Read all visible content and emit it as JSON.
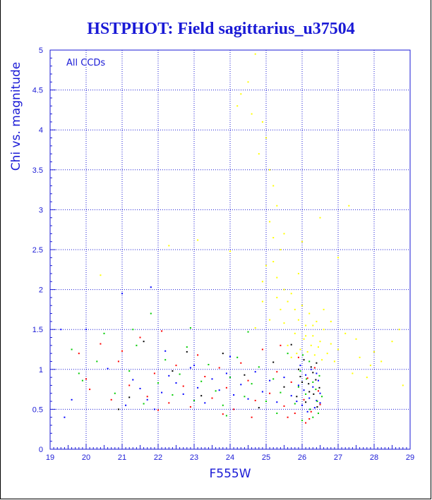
{
  "chart_data": {
    "type": "scatter",
    "title": "HSTPHOT: Field sagittarius_u37504",
    "xlabel": "F555W",
    "ylabel": "Chi vs. magnitude",
    "annotation": "All CCDs",
    "xlim": [
      19,
      29
    ],
    "ylim": [
      0,
      5
    ],
    "x_ticks": [
      "19",
      "20",
      "21",
      "22",
      "23",
      "24",
      "25",
      "26",
      "27",
      "28",
      "29"
    ],
    "y_ticks": [
      "0",
      "0.5",
      "1",
      "1.5",
      "2",
      "2.5",
      "3",
      "3.5",
      "4",
      "4.5",
      "5"
    ],
    "grid": true,
    "colors": {
      "frame": "#1a1ad6",
      "grid": "#1a1ad6",
      "point_colors": [
        "#0000ff",
        "#00cc00",
        "#ff0000",
        "#000000",
        "#ffff00"
      ]
    },
    "series": [
      {
        "color": "#0000ff",
        "points": [
          [
            19.3,
            1.5
          ],
          [
            19.4,
            0.4
          ],
          [
            19.6,
            0.62
          ],
          [
            20.0,
            1.5
          ],
          [
            20.6,
            1.01
          ],
          [
            21.1,
            0.55
          ],
          [
            21.3,
            0.87
          ],
          [
            21.5,
            0.76
          ],
          [
            21.7,
            0.62
          ],
          [
            21.9,
            0.5
          ],
          [
            22.1,
            0.71
          ],
          [
            22.3,
            0.92
          ],
          [
            22.5,
            0.83
          ],
          [
            22.7,
            0.69
          ],
          [
            22.9,
            1.02
          ],
          [
            23.1,
            0.77
          ],
          [
            23.3,
            0.58
          ],
          [
            23.5,
            0.88
          ],
          [
            23.7,
            0.74
          ],
          [
            23.9,
            0.95
          ],
          [
            24.1,
            0.68
          ],
          [
            24.3,
            0.81
          ],
          [
            24.5,
            0.63
          ],
          [
            24.7,
            0.97
          ],
          [
            24.9,
            0.72
          ],
          [
            25.1,
            0.86
          ],
          [
            25.3,
            0.59
          ],
          [
            25.5,
            0.9
          ],
          [
            25.7,
            0.67
          ],
          [
            25.9,
            0.8
          ],
          [
            26.0,
            0.55
          ],
          [
            26.1,
            0.93
          ],
          [
            26.2,
            0.64
          ],
          [
            26.3,
            0.78
          ],
          [
            26.4,
            0.61
          ],
          [
            26.45,
            0.86
          ],
          [
            26.5,
            0.7
          ],
          [
            26.35,
            0.52
          ],
          [
            26.25,
            1.0
          ],
          [
            26.15,
            0.47
          ],
          [
            26.05,
            0.74
          ],
          [
            25.95,
            1.05
          ],
          [
            25.85,
            0.6
          ],
          [
            26.5,
            0.58
          ],
          [
            26.4,
            0.95
          ],
          [
            21.0,
            1.95
          ],
          [
            21.8,
            2.03
          ],
          [
            22.2,
            1.23
          ],
          [
            23.0,
            1.05
          ],
          [
            24.0,
            1.16
          ]
        ]
      },
      {
        "color": "#00cc00",
        "points": [
          [
            19.6,
            1.25
          ],
          [
            19.8,
            0.95
          ],
          [
            20.3,
            1.1
          ],
          [
            20.8,
            0.7
          ],
          [
            21.2,
            0.98
          ],
          [
            21.4,
            1.3
          ],
          [
            21.6,
            0.57
          ],
          [
            21.8,
            1.7
          ],
          [
            22.0,
            0.83
          ],
          [
            22.2,
            1.12
          ],
          [
            22.4,
            0.68
          ],
          [
            22.6,
            0.94
          ],
          [
            22.8,
            1.28
          ],
          [
            23.0,
            0.61
          ],
          [
            23.2,
            0.85
          ],
          [
            23.4,
            1.06
          ],
          [
            23.6,
            0.73
          ],
          [
            23.8,
            0.55
          ],
          [
            24.0,
            0.9
          ],
          [
            24.2,
            1.15
          ],
          [
            24.4,
            0.66
          ],
          [
            24.6,
            0.82
          ],
          [
            24.8,
            1.03
          ],
          [
            25.0,
            0.6
          ],
          [
            25.2,
            0.88
          ],
          [
            25.4,
            0.71
          ],
          [
            25.6,
            1.2
          ],
          [
            25.8,
            0.57
          ],
          [
            25.95,
            0.98
          ],
          [
            26.1,
            0.69
          ],
          [
            26.2,
            1.1
          ],
          [
            26.3,
            0.84
          ],
          [
            26.42,
            0.6
          ],
          [
            26.48,
            0.92
          ],
          [
            26.38,
            0.75
          ],
          [
            26.22,
            0.5
          ],
          [
            26.12,
            0.88
          ],
          [
            26.02,
            1.18
          ],
          [
            25.9,
            0.78
          ],
          [
            26.55,
            0.66
          ],
          [
            21.3,
            1.5
          ],
          [
            20.5,
            1.45
          ],
          [
            22.9,
            1.52
          ],
          [
            24.5,
            1.47
          ],
          [
            19.9,
            0.86
          ],
          [
            23.9,
            0.42
          ],
          [
            25.3,
            0.45
          ],
          [
            26.0,
            0.36
          ],
          [
            26.3,
            0.4
          ],
          [
            26.45,
            0.45
          ]
        ]
      },
      {
        "color": "#ff0000",
        "points": [
          [
            19.8,
            1.2
          ],
          [
            20.1,
            0.75
          ],
          [
            20.4,
            1.32
          ],
          [
            20.7,
            0.62
          ],
          [
            20.9,
            1.1
          ],
          [
            21.2,
            0.8
          ],
          [
            21.5,
            1.4
          ],
          [
            21.7,
            0.66
          ],
          [
            21.9,
            0.95
          ],
          [
            22.1,
            1.48
          ],
          [
            22.3,
            0.58
          ],
          [
            22.5,
            1.05
          ],
          [
            22.7,
            0.79
          ],
          [
            22.9,
            0.53
          ],
          [
            23.1,
            1.18
          ],
          [
            23.3,
            0.91
          ],
          [
            23.5,
            0.64
          ],
          [
            23.7,
            1.02
          ],
          [
            23.9,
            0.77
          ],
          [
            24.1,
            0.5
          ],
          [
            24.3,
            1.08
          ],
          [
            24.5,
            0.86
          ],
          [
            24.7,
            0.61
          ],
          [
            24.9,
            1.25
          ],
          [
            25.1,
            0.7
          ],
          [
            25.3,
            0.97
          ],
          [
            25.5,
            0.54
          ],
          [
            25.7,
            0.84
          ],
          [
            25.9,
            1.15
          ],
          [
            26.05,
            0.62
          ],
          [
            26.15,
            0.89
          ],
          [
            26.25,
            0.47
          ],
          [
            26.35,
            1.02
          ],
          [
            26.45,
            0.73
          ],
          [
            26.5,
            0.56
          ],
          [
            25.8,
            0.45
          ],
          [
            26.2,
            0.38
          ],
          [
            26.1,
            0.33
          ],
          [
            25.6,
            0.4
          ],
          [
            24.6,
            0.4
          ],
          [
            23.8,
            0.44
          ],
          [
            20.0,
            0.88
          ],
          [
            21.0,
            1.23
          ],
          [
            22.0,
            0.49
          ],
          [
            25.4,
            1.3
          ]
        ]
      },
      {
        "color": "#000000",
        "points": [
          [
            20.9,
            0.5
          ],
          [
            21.6,
            1.35
          ],
          [
            22.4,
            0.98
          ],
          [
            23.2,
            0.67
          ],
          [
            23.8,
            1.2
          ],
          [
            24.4,
            0.93
          ],
          [
            24.8,
            0.52
          ],
          [
            25.2,
            1.09
          ],
          [
            25.5,
            0.78
          ],
          [
            25.7,
            1.31
          ],
          [
            25.85,
            0.66
          ],
          [
            25.95,
            0.91
          ],
          [
            26.05,
            1.12
          ],
          [
            26.1,
            0.59
          ],
          [
            26.18,
            0.82
          ],
          [
            26.25,
            1.03
          ],
          [
            26.32,
            0.69
          ],
          [
            26.38,
            0.87
          ],
          [
            26.42,
            0.53
          ],
          [
            26.48,
            0.77
          ],
          [
            26.3,
            0.96
          ],
          [
            26.2,
            0.72
          ],
          [
            26.0,
            0.84
          ],
          [
            25.9,
            1.0
          ],
          [
            26.4,
            1.08
          ],
          [
            22.8,
            1.22
          ],
          [
            21.2,
            0.65
          ]
        ]
      },
      {
        "color": "#ffff00",
        "points": [
          [
            24.2,
            4.3
          ],
          [
            24.5,
            4.6
          ],
          [
            24.6,
            4.2
          ],
          [
            24.7,
            4.95
          ],
          [
            24.3,
            4.45
          ],
          [
            24.8,
            3.7
          ],
          [
            24.9,
            4.1
          ],
          [
            25.0,
            3.9
          ],
          [
            25.1,
            3.5
          ],
          [
            25.2,
            3.3
          ],
          [
            25.3,
            3.05
          ],
          [
            25.1,
            2.85
          ],
          [
            25.2,
            2.65
          ],
          [
            25.4,
            2.5
          ],
          [
            25.0,
            2.3
          ],
          [
            25.3,
            2.15
          ],
          [
            25.5,
            2.0
          ],
          [
            25.6,
            1.85
          ],
          [
            25.7,
            1.95
          ],
          [
            25.8,
            1.75
          ],
          [
            25.9,
            1.62
          ],
          [
            26.0,
            1.8
          ],
          [
            26.1,
            1.55
          ],
          [
            26.2,
            1.7
          ],
          [
            26.3,
            1.42
          ],
          [
            26.4,
            1.6
          ],
          [
            26.5,
            1.35
          ],
          [
            26.6,
            1.5
          ],
          [
            26.7,
            1.2
          ],
          [
            26.8,
            1.32
          ],
          [
            26.9,
            1.1
          ],
          [
            27.0,
            1.25
          ],
          [
            27.2,
            1.45
          ],
          [
            27.4,
            0.95
          ],
          [
            27.6,
            1.15
          ],
          [
            27.9,
            1.05
          ],
          [
            28.2,
            1.1
          ],
          [
            28.5,
            1.35
          ],
          [
            28.7,
            1.5
          ],
          [
            28.8,
            0.8
          ],
          [
            27.3,
            3.05
          ],
          [
            27.0,
            2.4
          ],
          [
            26.5,
            2.9
          ],
          [
            26.0,
            2.6
          ],
          [
            25.5,
            2.7
          ],
          [
            25.2,
            2.35
          ],
          [
            24.9,
            2.1
          ],
          [
            25.6,
            1.3
          ],
          [
            25.8,
            1.45
          ],
          [
            25.95,
            1.25
          ],
          [
            26.05,
            1.38
          ],
          [
            26.15,
            1.22
          ],
          [
            26.25,
            1.3
          ],
          [
            26.35,
            1.18
          ],
          [
            26.45,
            1.28
          ],
          [
            26.55,
            1.12
          ],
          [
            25.7,
            1.15
          ],
          [
            25.85,
            1.2
          ],
          [
            26.1,
            1.42
          ],
          [
            26.3,
            1.55
          ],
          [
            25.5,
            1.58
          ],
          [
            25.4,
            1.75
          ],
          [
            25.3,
            1.9
          ],
          [
            25.9,
            2.2
          ],
          [
            26.6,
            1.75
          ],
          [
            26.8,
            1.6
          ],
          [
            27.5,
            1.38
          ],
          [
            28.0,
            1.22
          ],
          [
            27.8,
            0.9
          ],
          [
            25.1,
            1.62
          ],
          [
            24.9,
            1.85
          ],
          [
            24.7,
            1.52
          ],
          [
            20.4,
            2.18
          ],
          [
            22.3,
            2.55
          ],
          [
            23.1,
            2.62
          ],
          [
            24.0,
            2.48
          ]
        ]
      }
    ]
  }
}
